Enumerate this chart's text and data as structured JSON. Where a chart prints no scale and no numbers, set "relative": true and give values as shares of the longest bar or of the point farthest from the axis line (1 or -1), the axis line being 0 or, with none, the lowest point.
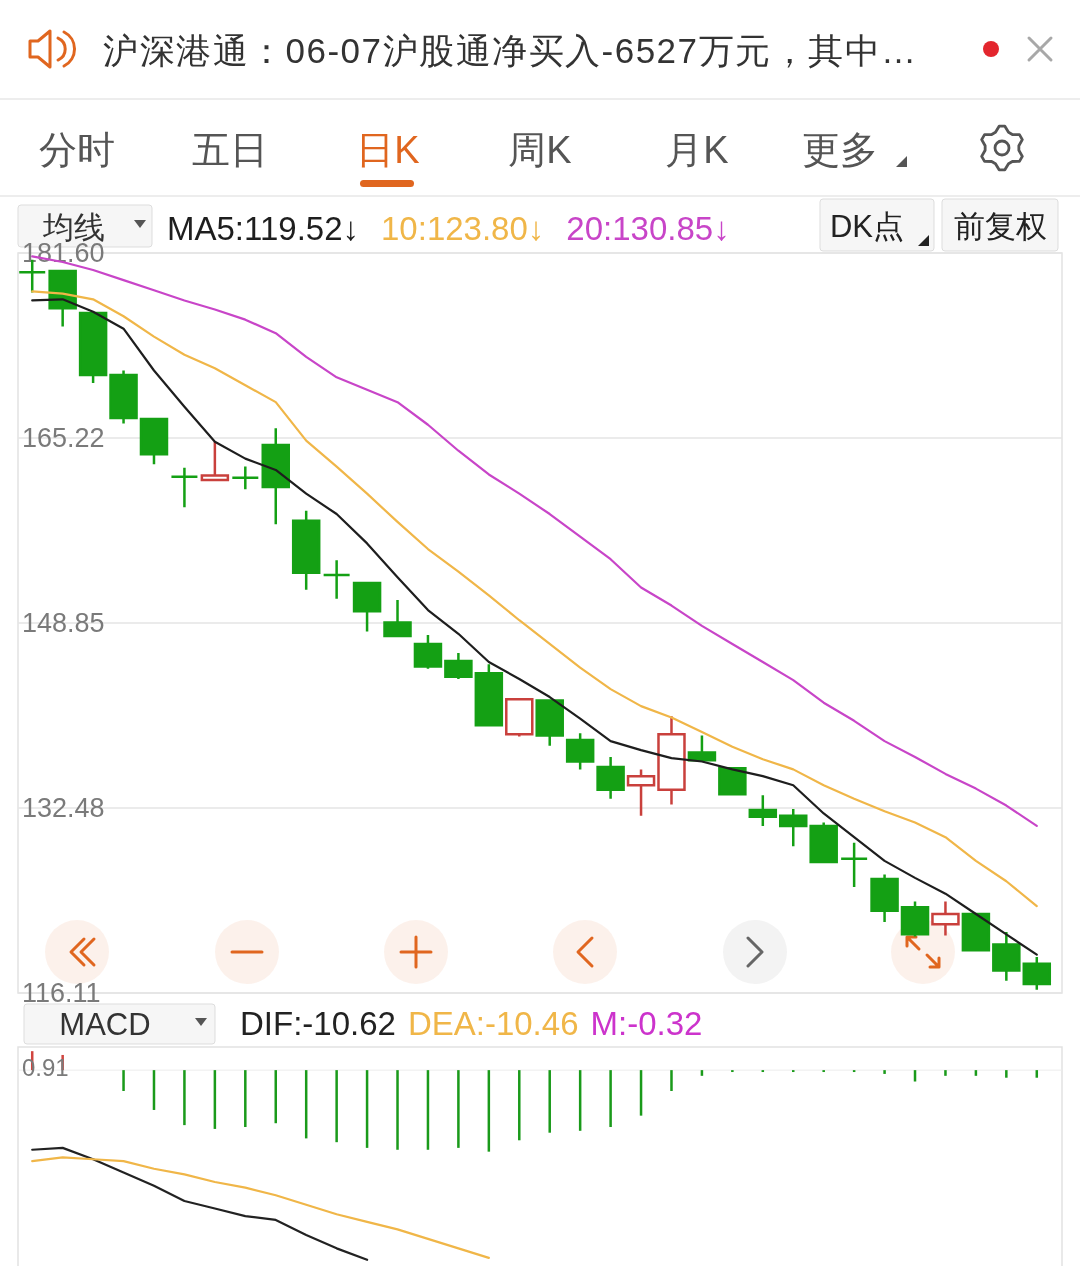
{
  "chart_data": [
    {
      "type": "candlestick",
      "annotations": [
        "沪深港通：06-07沪股通净买入-6527万元，其中…",
        "分时",
        "五日",
        "日K",
        "周K",
        "月K",
        "更多",
        "均线",
        "DK点",
        "前复权"
      ],
      "categories": [
        null,
        null,
        null,
        null,
        null,
        null,
        null,
        null,
        null,
        null,
        null,
        null,
        null,
        null,
        null,
        null,
        null,
        null,
        null,
        null,
        null,
        null,
        null,
        null,
        null,
        null,
        null,
        null,
        null,
        null,
        null,
        null,
        null,
        null
      ],
      "ohlc": [
        [
          179.9,
          181.0,
          178.1,
          179.9
        ],
        [
          180.0,
          180.0,
          175.1,
          176.7
        ],
        [
          176.3,
          176.3,
          170.1,
          170.8
        ],
        [
          170.8,
          171.2,
          166.5,
          167.0
        ],
        [
          166.9,
          166.9,
          162.9,
          163.8
        ],
        [
          161.8,
          162.6,
          159.1,
          161.8
        ],
        [
          161.5,
          164.9,
          161.5,
          161.9
        ],
        [
          161.7,
          162.7,
          160.7,
          161.7
        ],
        [
          164.6,
          166.1,
          157.6,
          160.9
        ],
        [
          157.9,
          158.8,
          151.8,
          153.3
        ],
        [
          153.1,
          154.4,
          151.0,
          153.1
        ],
        [
          152.4,
          152.4,
          148.1,
          149.9
        ],
        [
          148.9,
          150.9,
          147.7,
          147.7
        ],
        [
          147.0,
          147.8,
          144.8,
          145.0
        ],
        [
          145.5,
          146.2,
          143.9,
          144.1
        ],
        [
          144.4,
          145.2,
          139.8,
          139.8
        ],
        [
          139.0,
          142.1,
          138.8,
          142.1
        ],
        [
          142.0,
          142.0,
          138.0,
          138.9
        ],
        [
          138.5,
          139.1,
          135.9,
          136.6
        ],
        [
          136.1,
          137.0,
          133.3,
          134.1
        ],
        [
          134.5,
          135.9,
          131.8,
          135.3
        ],
        [
          134.1,
          140.6,
          132.8,
          139.0
        ],
        [
          137.4,
          138.9,
          136.7,
          136.7
        ],
        [
          136.0,
          136.0,
          133.7,
          133.7
        ],
        [
          132.3,
          133.6,
          130.9,
          131.7
        ],
        [
          131.8,
          132.4,
          129.1,
          130.9
        ],
        [
          130.9,
          131.2,
          127.6,
          127.7
        ],
        [
          128.0,
          129.4,
          125.5,
          128.0
        ],
        [
          126.2,
          126.6,
          122.4,
          123.4
        ],
        [
          123.7,
          124.2,
          121.1,
          121.3
        ],
        [
          122.2,
          124.2,
          121.2,
          123.1
        ],
        [
          123.1,
          123.1,
          119.9,
          119.9
        ],
        [
          120.4,
          121.5,
          117.2,
          118.1
        ],
        [
          118.7,
          119.3,
          116.4,
          116.9
        ]
      ],
      "colors": [
        "#14a014",
        "#14a014",
        "#14a014",
        "#14a014",
        "#14a014",
        "#14a014",
        "#c9403c",
        "#14a014",
        "#14a014",
        "#14a014",
        "#14a014",
        "#14a014",
        "#14a014",
        "#14a014",
        "#14a014",
        "#14a014",
        "#c9403c",
        "#14a014",
        "#14a014",
        "#14a014",
        "#c9403c",
        "#c9403c",
        "#14a014",
        "#14a014",
        "#14a014",
        "#14a014",
        "#14a014",
        "#14a014",
        "#14a014",
        "#14a014",
        "#c9403c",
        "#14a014",
        "#14a014",
        "#14a014"
      ],
      "series": [
        {
          "name": "MA5:119.52↓",
          "type": "line",
          "color": "#1e1e1e",
          "values": [
            177.4,
            177.5,
            176.4,
            174.9,
            171.2,
            168.0,
            164.9,
            163.4,
            162.4,
            160.3,
            158.5,
            155.9,
            152.9,
            150.0,
            147.9,
            145.4,
            143.9,
            142.3,
            140.4,
            138.4,
            137.6,
            136.9,
            136.6,
            135.9,
            135.3,
            134.5,
            132.0,
            129.9,
            127.8,
            126.3,
            124.9,
            123.1,
            121.3,
            119.5
          ]
        },
        {
          "name": "10:123.80↓",
          "type": "line",
          "color": "#f0b648",
          "values": [
            178.2,
            178.0,
            177.5,
            176.0,
            174.2,
            172.6,
            171.4,
            169.9,
            168.4,
            165.0,
            162.7,
            160.3,
            157.8,
            155.4,
            153.4,
            151.3,
            149.1,
            147.0,
            144.9,
            143.0,
            141.5,
            140.5,
            139.2,
            137.9,
            136.8,
            135.9,
            134.5,
            133.3,
            132.2,
            131.2,
            129.9,
            127.8,
            126.0,
            123.8
          ]
        },
        {
          "name": "20:130.85↓",
          "type": "line",
          "color": "#c845c8",
          "values": [
            181.3,
            180.8,
            180.1,
            179.2,
            178.3,
            177.4,
            176.6,
            175.7,
            174.5,
            172.4,
            170.6,
            169.5,
            168.4,
            166.4,
            164.1,
            162.0,
            160.3,
            158.5,
            156.5,
            154.5,
            152.0,
            150.4,
            148.6,
            147.0,
            145.4,
            143.8,
            141.8,
            140.2,
            138.4,
            137.0,
            135.5,
            134.2,
            132.7,
            130.9
          ]
        }
      ],
      "ylim": [
        116.11,
        181.6
      ],
      "yticks": [
        116.11,
        132.48,
        148.85,
        165.22,
        {
          "value": 181.6,
          "label": "181.60"
        }
      ],
      "grid": "y",
      "legend": "top"
    },
    {
      "type": "bar",
      "relative": true,
      "annotations": [
        "MACD",
        "M:-0.32",
        "0.91"
      ],
      "categories": [
        null,
        null,
        null,
        null,
        null,
        null,
        null,
        null,
        null,
        null,
        null,
        null,
        null,
        null,
        null,
        null,
        null,
        null,
        null,
        null,
        null,
        null,
        null,
        null,
        null,
        null,
        null,
        null,
        null,
        null,
        null,
        null,
        null,
        null
      ],
      "series": [
        {
          "colors": [
            "#d0453f",
            "#d0453f",
            "#d0453f",
            "#1a9a1a",
            "#1a9a1a",
            "#1a9a1a",
            "#1a9a1a",
            "#1a9a1a",
            "#1a9a1a",
            "#1a9a1a",
            "#1a9a1a",
            "#1a9a1a",
            "#1a9a1a",
            "#1a9a1a",
            "#1a9a1a",
            "#1a9a1a",
            "#1a9a1a",
            "#1a9a1a",
            "#1a9a1a",
            "#1a9a1a",
            "#1a9a1a",
            "#1a9a1a",
            "#1a9a1a",
            "#1a9a1a",
            "#1a9a1a",
            "#1a9a1a",
            "#1a9a1a",
            "#1a9a1a",
            "#1a9a1a",
            "#1a9a1a",
            "#1a9a1a",
            "#1a9a1a",
            "#1a9a1a",
            "#1a9a1a"
          ],
          "values": [
            0.1,
            0.08,
            null,
            -0.11,
            -0.21,
            -0.29,
            -0.31,
            -0.3,
            -0.28,
            -0.36,
            -0.38,
            -0.41,
            -0.42,
            -0.42,
            -0.41,
            -0.43,
            -0.37,
            -0.33,
            -0.32,
            -0.3,
            -0.24,
            -0.11,
            -0.03,
            -0.01,
            -0.01,
            -0.01,
            -0.01,
            -0.01,
            -0.02,
            -0.06,
            -0.03,
            -0.03,
            -0.04,
            -0.04
          ]
        },
        {
          "name": "DIF:-10.62",
          "type": "line",
          "color": "#222222",
          "values": [
            -0.42,
            -0.41,
            -0.47,
            -0.54,
            -0.61,
            -0.69,
            -0.73,
            -0.77,
            -0.79,
            -0.87,
            -0.94,
            -1,
            null,
            null,
            null,
            null,
            null,
            null,
            null,
            null,
            null,
            null,
            null,
            null,
            null,
            null,
            null,
            null,
            null,
            null,
            null,
            null,
            null,
            null
          ]
        },
        {
          "name": "DEA:-10.46",
          "type": "line",
          "color": "#f0b648",
          "values": [
            -0.48,
            -0.46,
            -0.47,
            -0.48,
            -0.52,
            -0.55,
            -0.59,
            -0.62,
            -0.66,
            -0.71,
            -0.76,
            -0.8,
            -0.84,
            -0.89,
            -0.94,
            -0.99,
            null,
            null,
            null,
            null,
            null,
            null,
            null,
            null,
            null,
            null,
            null,
            null,
            null,
            null,
            null,
            null,
            null,
            null
          ]
        }
      ],
      "legend": "top"
    }
  ]
}
